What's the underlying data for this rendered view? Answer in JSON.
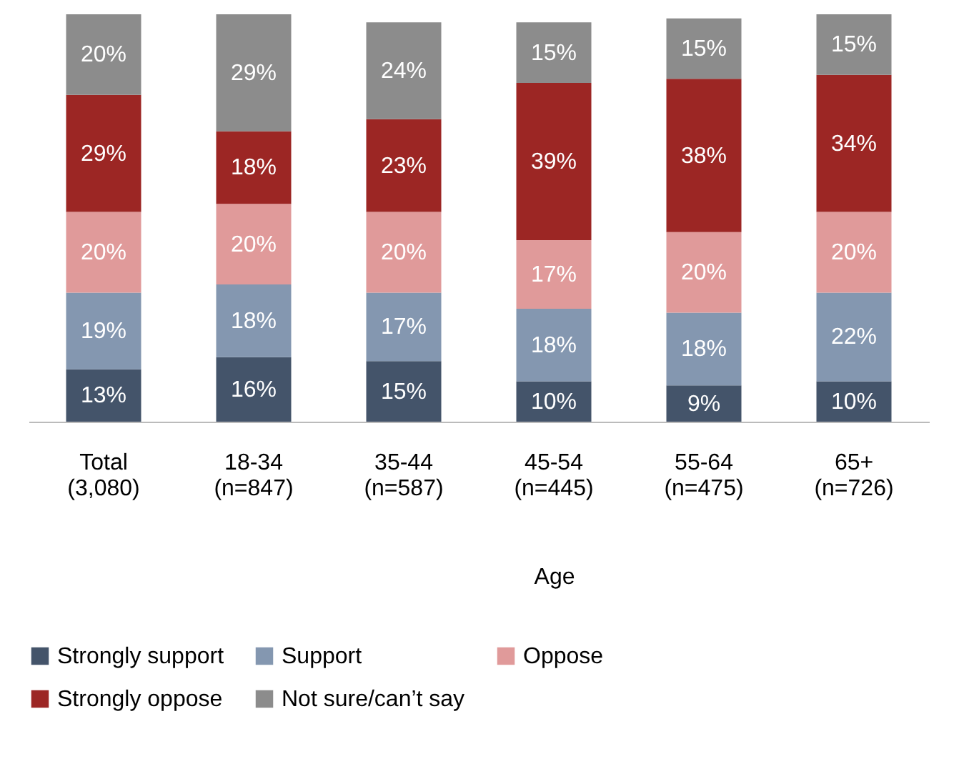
{
  "chart_data": {
    "type": "bar",
    "stacked": true,
    "xlabel": "Age",
    "categories": [
      "Total (3,080)",
      "18-34 (n=847)",
      "35-44 (n=587)",
      "45-54 (n=445)",
      "55-64 (n=475)",
      "65+ (n=726)"
    ],
    "series": [
      {
        "name": "Strongly support",
        "color": "#44546a",
        "values": [
          13,
          16,
          15,
          10,
          9,
          10
        ],
        "value_labels": [
          "13%",
          "16%",
          "15%",
          "10%",
          "9%",
          "10%"
        ]
      },
      {
        "name": "Support",
        "color": "#8497b0",
        "values": [
          19,
          18,
          17,
          18,
          18,
          22
        ],
        "value_labels": [
          "19%",
          "18%",
          "17%",
          "18%",
          "18%",
          "22%"
        ]
      },
      {
        "name": "Oppose",
        "color": "#e09a9a",
        "values": [
          20,
          20,
          20,
          17,
          20,
          20
        ],
        "value_labels": [
          "20%",
          "20%",
          "20%",
          "17%",
          "20%",
          "20%"
        ]
      },
      {
        "name": "Strongly oppose",
        "color": "#9c2624",
        "values": [
          29,
          18,
          23,
          39,
          38,
          34
        ],
        "value_labels": [
          "29%",
          "18%",
          "23%",
          "39%",
          "38%",
          "34%"
        ]
      },
      {
        "name": "Not sure/can’t say",
        "color": "#8c8c8c",
        "values": [
          20,
          29,
          24,
          15,
          15,
          15
        ],
        "value_labels": [
          "20%",
          "29%",
          "24%",
          "15%",
          "15%",
          "15%"
        ]
      }
    ],
    "legend": "bottom",
    "grid": false
  }
}
